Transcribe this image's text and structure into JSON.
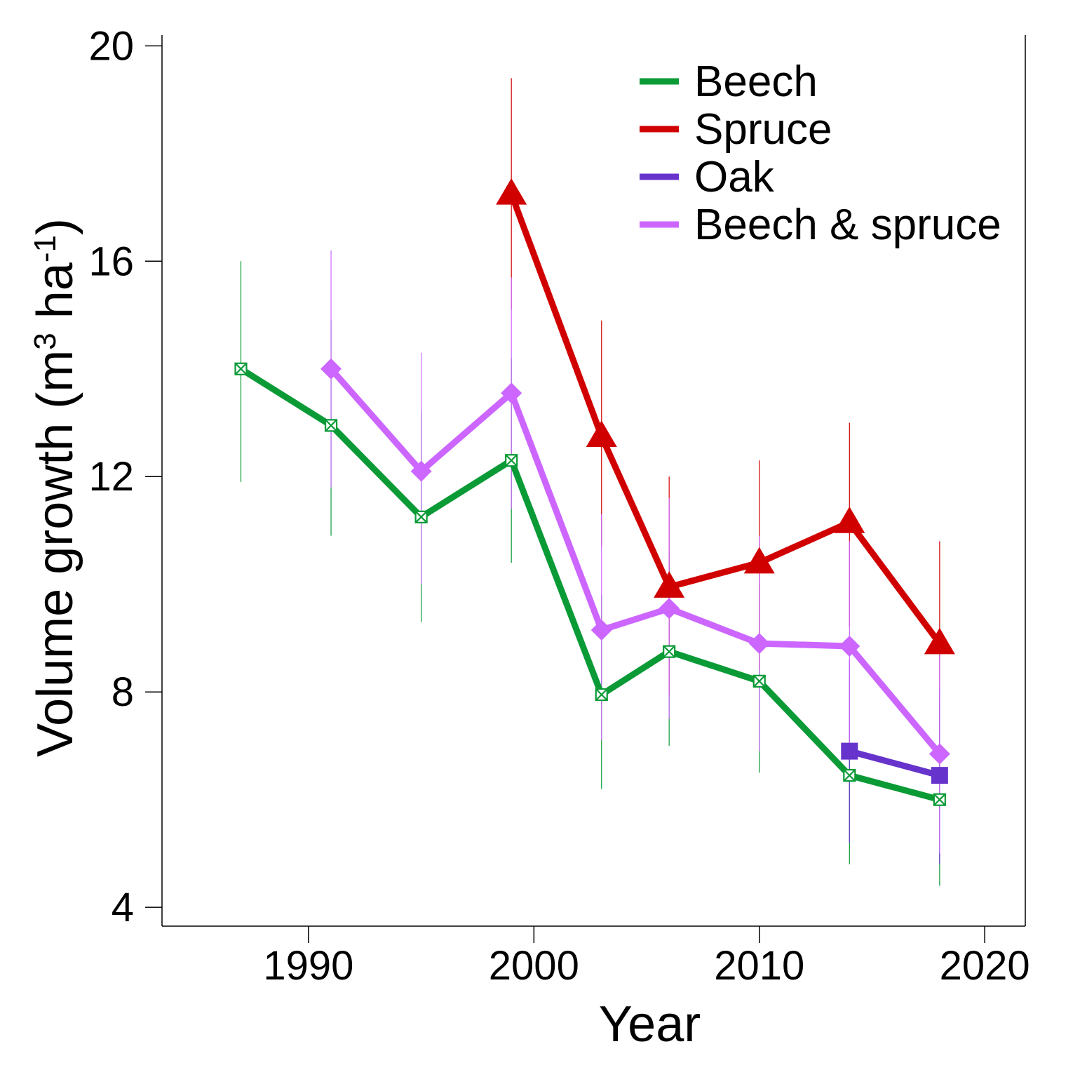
{
  "chart_data": {
    "type": "line",
    "xlabel": "Year",
    "ylabel": {
      "main": "Volume growth (m",
      "sup1": "3",
      "mid": " ha",
      "sup2": "-1",
      "end": ")"
    },
    "xlim": [
      1983.5,
      2021.8
    ],
    "ylim": [
      3.65,
      20.2
    ],
    "x_ticks": [
      1990,
      2000,
      2010,
      2020
    ],
    "y_ticks": [
      4,
      8,
      12,
      16,
      20
    ],
    "grid": false,
    "legend_position": "top-right",
    "series": [
      {
        "name": "Beech",
        "color": "#0a9a36",
        "marker": "square-x",
        "points": [
          {
            "x": 1987,
            "y": 14.0,
            "lo": 11.9,
            "hi": 16.0
          },
          {
            "x": 1991,
            "y": 12.95,
            "lo": 10.9,
            "hi": 14.9
          },
          {
            "x": 1995,
            "y": 11.25,
            "lo": 9.3,
            "hi": 13.2
          },
          {
            "x": 1999,
            "y": 12.3,
            "lo": 10.4,
            "hi": 14.2
          },
          {
            "x": 2003,
            "y": 7.95,
            "lo": 6.2,
            "hi": 9.8
          },
          {
            "x": 2006,
            "y": 8.75,
            "lo": 7.0,
            "hi": 10.6
          },
          {
            "x": 2010,
            "y": 8.2,
            "lo": 6.5,
            "hi": 10.0
          },
          {
            "x": 2014,
            "y": 6.45,
            "lo": 4.8,
            "hi": 8.3
          },
          {
            "x": 2018,
            "y": 6.0,
            "lo": 4.4,
            "hi": 7.8
          }
        ]
      },
      {
        "name": "Spruce",
        "color": "#d10000",
        "marker": "triangle",
        "points": [
          {
            "x": 1999,
            "y": 17.25,
            "lo": 15.1,
            "hi": 19.4
          },
          {
            "x": 2003,
            "y": 12.75,
            "lo": 10.7,
            "hi": 14.9
          },
          {
            "x": 2006,
            "y": 9.95,
            "lo": 7.95,
            "hi": 12.0
          },
          {
            "x": 2010,
            "y": 10.4,
            "lo": 8.4,
            "hi": 12.3
          },
          {
            "x": 2014,
            "y": 11.15,
            "lo": 9.2,
            "hi": 13.0
          },
          {
            "x": 2018,
            "y": 8.9,
            "lo": 6.9,
            "hi": 10.8
          }
        ]
      },
      {
        "name": "Oak",
        "color": "#6633cc",
        "marker": "square",
        "points": [
          {
            "x": 2014,
            "y": 6.9,
            "lo": 5.2,
            "hi": 8.6
          },
          {
            "x": 2018,
            "y": 6.45,
            "lo": 4.8,
            "hi": 8.1
          }
        ]
      },
      {
        "name": "Beech & spruce",
        "color": "#cc66ff",
        "marker": "diamond",
        "points": [
          {
            "x": 1991,
            "y": 14.0,
            "lo": 11.8,
            "hi": 16.2
          },
          {
            "x": 1995,
            "y": 12.1,
            "lo": 10.0,
            "hi": 14.3
          },
          {
            "x": 1999,
            "y": 13.55,
            "lo": 11.4,
            "hi": 15.7
          },
          {
            "x": 2003,
            "y": 9.15,
            "lo": 7.1,
            "hi": 11.3
          },
          {
            "x": 2006,
            "y": 9.55,
            "lo": 7.5,
            "hi": 11.6
          },
          {
            "x": 2010,
            "y": 8.9,
            "lo": 6.9,
            "hi": 10.9
          },
          {
            "x": 2014,
            "y": 8.85,
            "lo": 6.9,
            "hi": 10.8
          },
          {
            "x": 2018,
            "y": 6.85,
            "lo": 5.0,
            "hi": 8.7
          }
        ]
      }
    ]
  }
}
